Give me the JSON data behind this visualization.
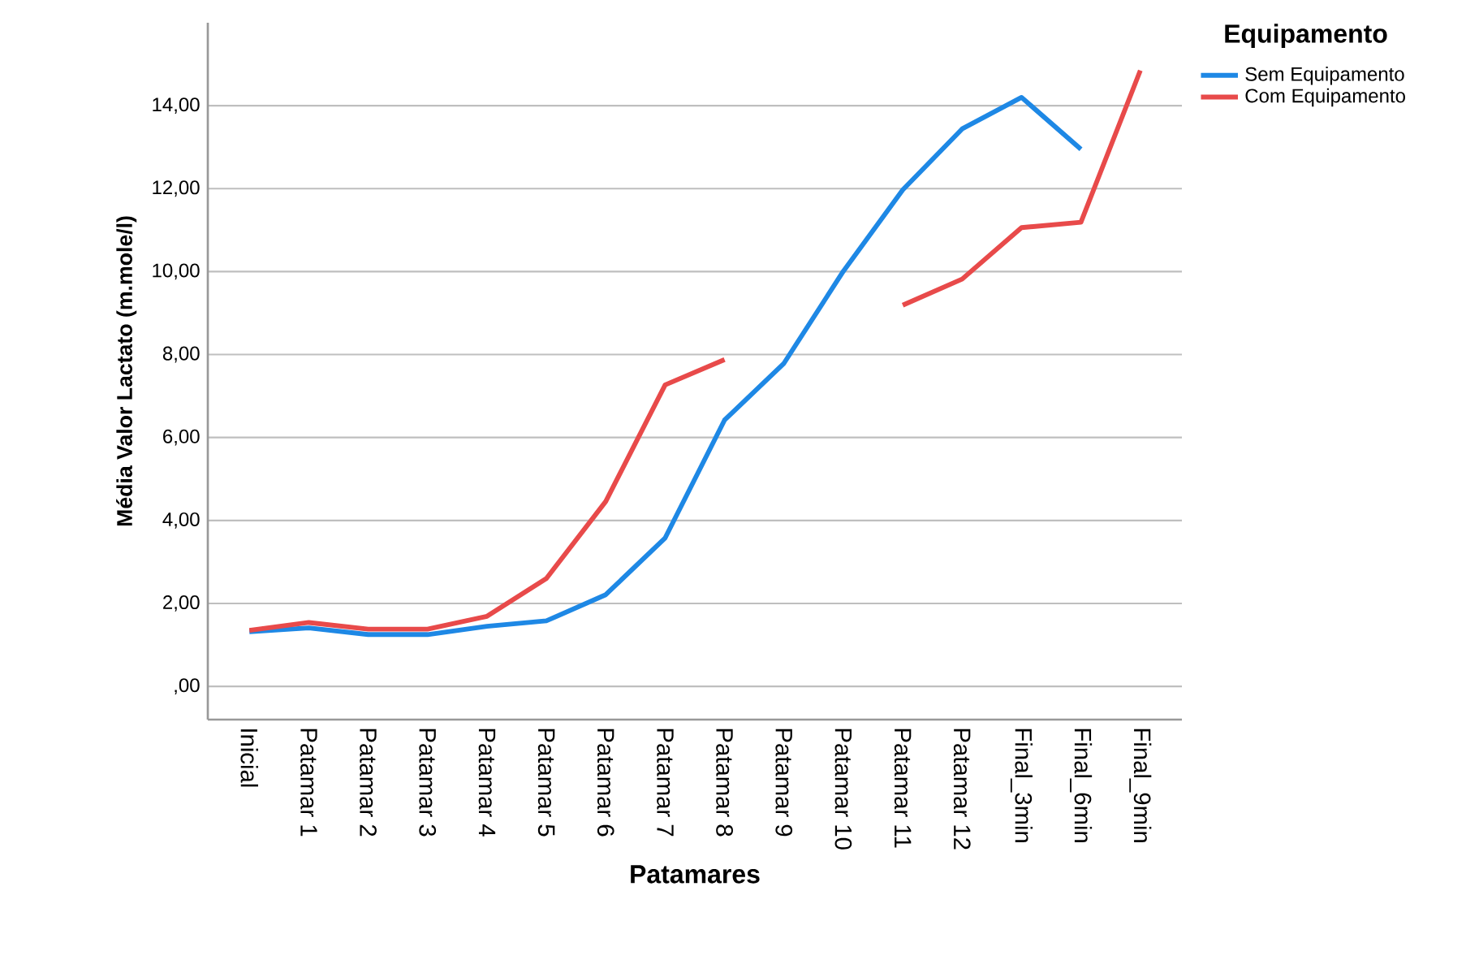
{
  "chart_data": {
    "type": "line",
    "xlabel": "Patamares",
    "ylabel": "Média Valor Lactato (m.mole/l)",
    "legend_title": "Equipamento",
    "categories": [
      "Inicial",
      "Patamar 1",
      "Patamar 2",
      "Patamar 3",
      "Patamar 4",
      "Patamar 5",
      "Patamar 6",
      "Patamar 7",
      "Patamar 8",
      "Patamar 9",
      "Patamar 10",
      "Patamar 11",
      "Patamar 12",
      "Final_3min",
      "Final_6min",
      "Final_9min"
    ],
    "series": [
      {
        "name": "Sem Equipamento",
        "color": "#1e88e5",
        "values": [
          1.32,
          1.41,
          1.25,
          1.25,
          1.45,
          1.58,
          2.21,
          3.58,
          6.42,
          7.79,
          10.01,
          11.97,
          13.44,
          14.2,
          12.95,
          null
        ]
      },
      {
        "name": "Com Equipamento",
        "color": "#e84a4a",
        "values": [
          1.35,
          1.54,
          1.38,
          1.38,
          1.69,
          2.6,
          4.46,
          7.27,
          7.88,
          null,
          null,
          9.19,
          9.82,
          11.06,
          11.19,
          14.85
        ]
      }
    ],
    "ylim": [
      -0.8,
      16
    ],
    "yticks": [
      {
        "value": 0,
        "label": ",00"
      },
      {
        "value": 2,
        "label": "2,00"
      },
      {
        "value": 4,
        "label": "4,00"
      },
      {
        "value": 6,
        "label": "6,00"
      },
      {
        "value": 8,
        "label": "8,00"
      },
      {
        "value": 10,
        "label": "10,00"
      },
      {
        "value": 12,
        "label": "12,00"
      },
      {
        "value": 14,
        "label": "14,00"
      }
    ],
    "grid": "y",
    "legend": "top right",
    "marker": "none",
    "line_style": "solid"
  }
}
